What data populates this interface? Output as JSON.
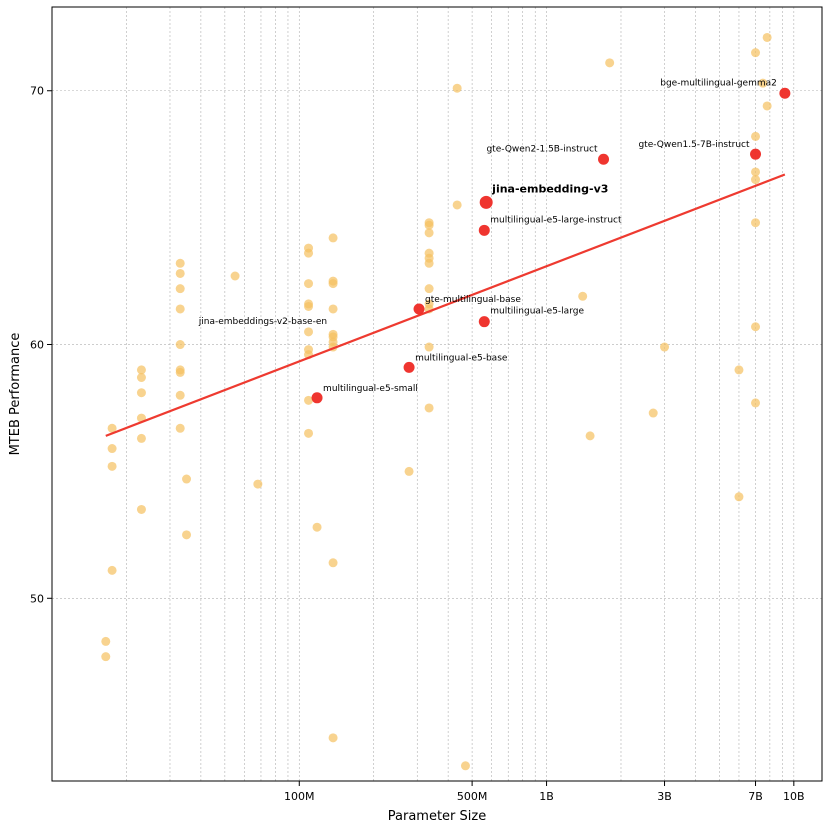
{
  "chart_data": {
    "type": "scatter",
    "title": "",
    "xlabel": "Parameter Size",
    "ylabel": "MTEB Performance",
    "x_scale": "log",
    "xlim": [
      10000000,
      13000000000
    ],
    "ylim": [
      42.8,
      73.3
    ],
    "grid": true,
    "x_ticks": [
      {
        "value": 100000000,
        "label": "100M"
      },
      {
        "value": 500000000,
        "label": "500M"
      },
      {
        "value": 1000000000,
        "label": "1B"
      },
      {
        "value": 3000000000,
        "label": "3B"
      },
      {
        "value": 7000000000,
        "label": "7B"
      },
      {
        "value": 10000000000,
        "label": "10B"
      }
    ],
    "y_ticks": [
      {
        "value": 50,
        "label": "50"
      },
      {
        "value": 60,
        "label": "60"
      },
      {
        "value": 70,
        "label": "70"
      }
    ],
    "colors": {
      "background_points": "#f5c060",
      "highlight_points": "#ee2a24",
      "trend_line": "#ee3a30",
      "grid": "#b0b0b0"
    },
    "background_points": [
      {
        "x": 16500000,
        "y": 48.3
      },
      {
        "x": 16500000,
        "y": 47.7
      },
      {
        "x": 17500000,
        "y": 56.7
      },
      {
        "x": 17500000,
        "y": 55.9
      },
      {
        "x": 17500000,
        "y": 55.2
      },
      {
        "x": 17500000,
        "y": 51.1
      },
      {
        "x": 23000000,
        "y": 59.0
      },
      {
        "x": 23000000,
        "y": 58.7
      },
      {
        "x": 23000000,
        "y": 58.1
      },
      {
        "x": 23000000,
        "y": 57.1
      },
      {
        "x": 23000000,
        "y": 56.3
      },
      {
        "x": 23000000,
        "y": 53.5
      },
      {
        "x": 33000000,
        "y": 63.2
      },
      {
        "x": 33000000,
        "y": 62.8
      },
      {
        "x": 33000000,
        "y": 62.2
      },
      {
        "x": 33000000,
        "y": 61.4
      },
      {
        "x": 33000000,
        "y": 60.0
      },
      {
        "x": 33000000,
        "y": 59.0
      },
      {
        "x": 33000000,
        "y": 58.9
      },
      {
        "x": 33000000,
        "y": 58.0
      },
      {
        "x": 33000000,
        "y": 56.7
      },
      {
        "x": 35000000,
        "y": 54.7
      },
      {
        "x": 35000000,
        "y": 52.5
      },
      {
        "x": 55000000,
        "y": 62.7
      },
      {
        "x": 68000000,
        "y": 54.5
      },
      {
        "x": 109000000,
        "y": 63.8
      },
      {
        "x": 109000000,
        "y": 63.6
      },
      {
        "x": 109000000,
        "y": 62.4
      },
      {
        "x": 109000000,
        "y": 61.6
      },
      {
        "x": 109000000,
        "y": 61.5
      },
      {
        "x": 109000000,
        "y": 60.5
      },
      {
        "x": 109000000,
        "y": 59.8
      },
      {
        "x": 109000000,
        "y": 59.6
      },
      {
        "x": 109000000,
        "y": 57.8
      },
      {
        "x": 109000000,
        "y": 56.5
      },
      {
        "x": 118000000,
        "y": 52.8
      },
      {
        "x": 137000000,
        "y": 64.2
      },
      {
        "x": 137000000,
        "y": 62.5
      },
      {
        "x": 137000000,
        "y": 62.4
      },
      {
        "x": 137000000,
        "y": 61.4
      },
      {
        "x": 137000000,
        "y": 60.4
      },
      {
        "x": 137000000,
        "y": 60.3
      },
      {
        "x": 137000000,
        "y": 60.1
      },
      {
        "x": 137000000,
        "y": 59.9
      },
      {
        "x": 137000000,
        "y": 51.4
      },
      {
        "x": 137000000,
        "y": 44.5
      },
      {
        "x": 278000000,
        "y": 55.0
      },
      {
        "x": 335000000,
        "y": 64.8
      },
      {
        "x": 335000000,
        "y": 64.7
      },
      {
        "x": 335000000,
        "y": 64.4
      },
      {
        "x": 335000000,
        "y": 63.6
      },
      {
        "x": 335000000,
        "y": 63.4
      },
      {
        "x": 335000000,
        "y": 63.2
      },
      {
        "x": 335000000,
        "y": 62.2
      },
      {
        "x": 335000000,
        "y": 61.6
      },
      {
        "x": 335000000,
        "y": 61.4
      },
      {
        "x": 335000000,
        "y": 59.9
      },
      {
        "x": 335000000,
        "y": 57.5
      },
      {
        "x": 435000000,
        "y": 70.1
      },
      {
        "x": 435000000,
        "y": 65.5
      },
      {
        "x": 470000000,
        "y": 43.4
      },
      {
        "x": 1400000000,
        "y": 61.9
      },
      {
        "x": 1500000000,
        "y": 56.4
      },
      {
        "x": 1800000000,
        "y": 71.1
      },
      {
        "x": 2700000000,
        "y": 57.3
      },
      {
        "x": 3000000000,
        "y": 59.9
      },
      {
        "x": 6000000000,
        "y": 59.0
      },
      {
        "x": 6000000000,
        "y": 54.0
      },
      {
        "x": 7000000000,
        "y": 71.5
      },
      {
        "x": 7000000000,
        "y": 68.2
      },
      {
        "x": 7000000000,
        "y": 66.8
      },
      {
        "x": 7000000000,
        "y": 66.5
      },
      {
        "x": 7000000000,
        "y": 64.8
      },
      {
        "x": 7000000000,
        "y": 60.7
      },
      {
        "x": 7000000000,
        "y": 57.7
      },
      {
        "x": 7500000000,
        "y": 70.3
      },
      {
        "x": 7800000000,
        "y": 72.1
      },
      {
        "x": 7800000000,
        "y": 69.4
      }
    ],
    "highlighted": [
      {
        "name": "bge-multilingual-gemma2",
        "x": 9200000000,
        "y": 69.9
      },
      {
        "name": "gte-Qwen1.5-7B-instruct",
        "x": 7000000000,
        "y": 67.5
      },
      {
        "name": "gte-Qwen2-1.5B-instruct",
        "x": 1700000000,
        "y": 67.3
      },
      {
        "name": "jina-embedding-v3",
        "x": 570000000,
        "y": 65.6
      },
      {
        "name": "multilingual-e5-large-instruct",
        "x": 560000000,
        "y": 64.5
      },
      {
        "name": "gte-multilingual-base",
        "x": 305000000,
        "y": 61.4
      },
      {
        "name": "multilingual-e5-large",
        "x": 560000000,
        "y": 60.9
      },
      {
        "name": "multilingual-e5-base",
        "x": 278000000,
        "y": 59.1
      },
      {
        "name": "multilingual-e5-small",
        "x": 118000000,
        "y": 57.9
      }
    ],
    "annotations": [
      {
        "text": "bge-multilingual-gemma2",
        "x": 9200000000,
        "y": 69.9,
        "anchor": "end",
        "bold": false
      },
      {
        "text": "gte-Qwen1.5-7B-instruct",
        "x": 7000000000,
        "y": 67.5,
        "anchor": "end",
        "bold": false
      },
      {
        "text": "gte-Qwen2-1.5B-instruct",
        "x": 1700000000,
        "y": 67.3,
        "anchor": "end",
        "bold": false
      },
      {
        "text": "jina-embedding-v3",
        "x": 570000000,
        "y": 65.6,
        "anchor": "start",
        "bold": true
      },
      {
        "text": "multilingual-e5-large-instruct",
        "x": 560000000,
        "y": 64.5,
        "anchor": "start",
        "bold": false
      },
      {
        "text": "gte-multilingual-base",
        "x": 305000000,
        "y": 61.4,
        "anchor": "start",
        "bold": false
      },
      {
        "text": "multilingual-e5-large",
        "x": 560000000,
        "y": 60.9,
        "anchor": "start",
        "bold": false
      },
      {
        "text": "multilingual-e5-base",
        "x": 278000000,
        "y": 59.1,
        "anchor": "start",
        "bold": false
      },
      {
        "text": "multilingual-e5-small",
        "x": 118000000,
        "y": 57.9,
        "anchor": "start",
        "bold": false
      },
      {
        "text": "jina-embeddings-v2-base-en",
        "x": 137000000,
        "y": 60.7,
        "anchor": "end",
        "bold": false
      }
    ],
    "trend_line": {
      "x": [
        16500000,
        9200000000
      ],
      "y": [
        56.4,
        66.7
      ]
    }
  }
}
